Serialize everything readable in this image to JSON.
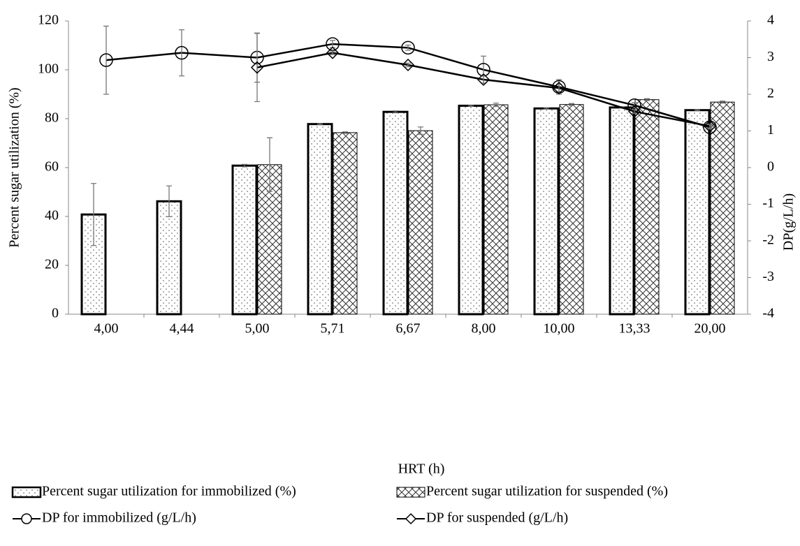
{
  "chart_data": {
    "type": "bar_line",
    "xlabel": "HRT (h)",
    "ylabel": "Percent sugar utilization (%)",
    "y2label": "DP(g/L/h)",
    "categories": [
      "4,00",
      "4,44",
      "5,00",
      "5,71",
      "6,67",
      "8,00",
      "10,00",
      "13,33",
      "20,00"
    ],
    "ylim": [
      0,
      120
    ],
    "yticks": [
      0,
      20,
      40,
      60,
      80,
      100,
      120
    ],
    "y2lim": [
      -4,
      4
    ],
    "y2ticks": [
      -4,
      -3,
      -2,
      -1,
      0,
      1,
      2,
      3,
      4
    ],
    "legend": "bottom",
    "series": [
      {
        "name": "Percent sugar utilization for immobilized (%)",
        "kind": "bar",
        "pattern": "dots",
        "color": "#000000",
        "values": [
          40.8,
          46.2,
          60.8,
          77.8,
          82.8,
          85.3,
          84.2,
          84.6,
          83.5
        ],
        "errors": [
          12.7,
          6.3,
          0.5,
          0.3,
          0.4,
          0.3,
          0.3,
          0.3,
          0.3
        ]
      },
      {
        "name": "Percent sugar utilization for suspended (%)",
        "kind": "bar",
        "pattern": "crosshatch",
        "color": "#000000",
        "values": [
          null,
          null,
          61.2,
          74.3,
          75.1,
          85.7,
          85.8,
          87.8,
          86.8
        ],
        "errors": [
          null,
          null,
          11,
          0.3,
          1.5,
          0.7,
          0.4,
          0.4,
          0.4
        ]
      },
      {
        "name": "DP for immobilized (g/L/h)",
        "kind": "line",
        "marker": "circle",
        "axis": "y2",
        "color": "#000000",
        "values": [
          2.93,
          3.13,
          3.0,
          3.37,
          3.27,
          2.67,
          2.2,
          1.7,
          1.1
        ],
        "errors": [
          0.93,
          0.63,
          0.67,
          0.1,
          0.07,
          0.37,
          0.2,
          0.07,
          0.05
        ]
      },
      {
        "name": "DP for suspended (g/L/h)",
        "kind": "line",
        "marker": "diamond",
        "axis": "y2",
        "color": "#000000",
        "values": [
          null,
          null,
          2.73,
          3.13,
          2.8,
          2.4,
          2.17,
          1.53,
          1.13
        ],
        "errors": [
          null,
          null,
          0.93,
          0.05,
          0.05,
          0.1,
          0.1,
          0.05,
          0.05
        ]
      }
    ]
  }
}
